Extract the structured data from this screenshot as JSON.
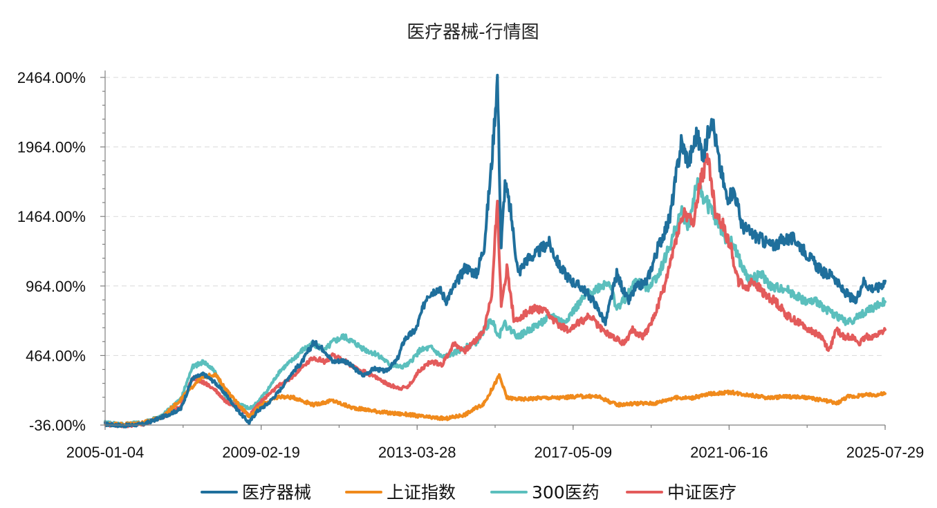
{
  "chart_data": {
    "type": "line",
    "title": "医疗器械-行情图",
    "xlabel": "",
    "ylabel": "",
    "x_tick_labels": [
      "2005-01-04",
      "2009-02-19",
      "2013-03-28",
      "2017-05-09",
      "2021-06-16",
      "2025-07-29"
    ],
    "y_tick_labels": [
      "-36.00%",
      "464.00%",
      "964.00%",
      "1464.00%",
      "1964.00%",
      "2464.00%"
    ],
    "ylim": [
      -36,
      2464
    ],
    "ytick_values": [
      -36,
      464,
      964,
      1464,
      1964,
      2464
    ],
    "x_range": [
      2005.0,
      2025.58
    ],
    "y_unit": "%",
    "grid": "horizontal dashed",
    "legend_position": "bottom",
    "series": [
      {
        "name": "医疗器械",
        "color": "#1f6f9c",
        "x": [
          2005.0,
          2005.5,
          2006.0,
          2006.5,
          2007.0,
          2007.3,
          2007.6,
          2007.9,
          2008.2,
          2008.5,
          2008.8,
          2009.0,
          2009.3,
          2009.6,
          2009.9,
          2010.2,
          2010.5,
          2010.8,
          2011.0,
          2011.3,
          2011.5,
          2011.8,
          2012.1,
          2012.4,
          2012.7,
          2012.9,
          2013.2,
          2013.5,
          2013.8,
          2014.0,
          2014.3,
          2014.5,
          2014.8,
          2015.0,
          2015.2,
          2015.35,
          2015.45,
          2015.55,
          2015.7,
          2015.9,
          2016.1,
          2016.4,
          2016.7,
          2017.0,
          2017.3,
          2017.6,
          2017.9,
          2018.2,
          2018.5,
          2018.8,
          2019.0,
          2019.3,
          2019.6,
          2019.9,
          2020.2,
          2020.4,
          2020.6,
          2020.8,
          2021.0,
          2021.2,
          2021.4,
          2021.6,
          2021.8,
          2022.0,
          2022.3,
          2022.6,
          2022.9,
          2023.2,
          2023.5,
          2023.8,
          2024.0,
          2024.2,
          2024.4,
          2024.6,
          2024.8,
          2025.0,
          2025.2,
          2025.4,
          2025.58
        ],
        "y": [
          -30,
          -40,
          -30,
          20,
          80,
          300,
          330,
          270,
          180,
          70,
          -20,
          60,
          120,
          210,
          330,
          420,
          560,
          500,
          420,
          430,
          390,
          320,
          370,
          350,
          430,
          580,
          650,
          900,
          950,
          860,
          1000,
          1100,
          1050,
          1250,
          1850,
          2464,
          1250,
          1700,
          1500,
          1050,
          1150,
          1200,
          1280,
          1100,
          1000,
          950,
          850,
          700,
          1050,
          850,
          950,
          1000,
          1250,
          1450,
          2000,
          1850,
          2050,
          1900,
          2200,
          1850,
          1600,
          1650,
          1400,
          1350,
          1300,
          1250,
          1300,
          1300,
          1200,
          1100,
          1050,
          1050,
          950,
          900,
          850,
          1000,
          950,
          950,
          1000
        ]
      },
      {
        "name": "上证指数",
        "color": "#f08a1c",
        "x": [
          2005.0,
          2005.5,
          2006.0,
          2006.5,
          2007.0,
          2007.5,
          2007.9,
          2008.3,
          2008.8,
          2009.2,
          2009.6,
          2010.0,
          2010.5,
          2011.0,
          2011.5,
          2012.0,
          2012.5,
          2013.0,
          2013.5,
          2014.0,
          2014.5,
          2015.0,
          2015.4,
          2015.6,
          2016.0,
          2016.5,
          2017.0,
          2017.5,
          2018.0,
          2018.5,
          2019.0,
          2019.5,
          2020.0,
          2020.5,
          2021.0,
          2021.5,
          2022.0,
          2022.5,
          2023.0,
          2023.5,
          2024.0,
          2024.3,
          2024.6,
          2024.8,
          2025.0,
          2025.3,
          2025.58
        ],
        "y": [
          -30,
          -30,
          -20,
          20,
          150,
          300,
          330,
          180,
          30,
          120,
          170,
          160,
          110,
          140,
          90,
          70,
          50,
          40,
          20,
          10,
          40,
          120,
          320,
          160,
          150,
          160,
          160,
          170,
          170,
          110,
          120,
          120,
          160,
          160,
          190,
          200,
          180,
          160,
          170,
          160,
          140,
          120,
          170,
          170,
          180,
          180,
          190
        ]
      },
      {
        "name": "300医药",
        "color": "#5bbfbd",
        "x": [
          2005.0,
          2005.5,
          2006.0,
          2006.5,
          2007.0,
          2007.3,
          2007.6,
          2007.9,
          2008.2,
          2008.5,
          2008.8,
          2009.0,
          2009.3,
          2009.6,
          2009.9,
          2010.2,
          2010.5,
          2010.8,
          2011.0,
          2011.3,
          2011.6,
          2011.9,
          2012.2,
          2012.5,
          2012.8,
          2013.0,
          2013.3,
          2013.6,
          2013.9,
          2014.2,
          2014.5,
          2014.8,
          2015.0,
          2015.2,
          2015.4,
          2015.5,
          2015.7,
          2015.9,
          2016.2,
          2016.5,
          2016.8,
          2017.1,
          2017.4,
          2017.7,
          2018.0,
          2018.3,
          2018.5,
          2018.8,
          2019.0,
          2019.3,
          2019.6,
          2019.9,
          2020.2,
          2020.4,
          2020.6,
          2020.8,
          2021.0,
          2021.2,
          2021.4,
          2021.6,
          2021.8,
          2022.0,
          2022.3,
          2022.6,
          2022.9,
          2023.2,
          2023.5,
          2023.8,
          2024.0,
          2024.3,
          2024.6,
          2024.9,
          2025.2,
          2025.58
        ],
        "y": [
          -20,
          -30,
          -20,
          30,
          150,
          380,
          420,
          350,
          150,
          120,
          80,
          120,
          220,
          350,
          420,
          500,
          550,
          500,
          560,
          600,
          550,
          500,
          470,
          400,
          380,
          400,
          500,
          520,
          450,
          480,
          520,
          560,
          650,
          720,
          600,
          700,
          650,
          600,
          650,
          700,
          750,
          700,
          800,
          900,
          950,
          1000,
          800,
          900,
          1000,
          950,
          1050,
          1250,
          1500,
          1400,
          1700,
          1600,
          1500,
          1400,
          1300,
          1250,
          1100,
          1000,
          1050,
          950,
          950,
          900,
          850,
          850,
          800,
          750,
          700,
          750,
          800,
          850
        ]
      },
      {
        "name": "中证医疗",
        "color": "#e35b5b",
        "x": [
          2005.0,
          2005.5,
          2006.0,
          2006.5,
          2007.0,
          2007.3,
          2007.6,
          2007.9,
          2008.2,
          2008.5,
          2008.8,
          2009.0,
          2009.3,
          2009.6,
          2009.9,
          2010.2,
          2010.5,
          2010.8,
          2011.0,
          2011.3,
          2011.6,
          2011.9,
          2012.2,
          2012.5,
          2012.8,
          2013.0,
          2013.3,
          2013.6,
          2013.9,
          2014.2,
          2014.5,
          2014.8,
          2015.0,
          2015.2,
          2015.35,
          2015.45,
          2015.6,
          2015.8,
          2016.0,
          2016.3,
          2016.6,
          2016.9,
          2017.2,
          2017.5,
          2017.8,
          2018.1,
          2018.4,
          2018.7,
          2018.9,
          2019.2,
          2019.5,
          2019.8,
          2020.1,
          2020.3,
          2020.5,
          2020.7,
          2020.9,
          2021.1,
          2021.3,
          2021.5,
          2021.7,
          2021.9,
          2022.1,
          2022.4,
          2022.7,
          2023.0,
          2023.3,
          2023.6,
          2023.9,
          2024.1,
          2024.3,
          2024.5,
          2024.7,
          2024.9,
          2025.1,
          2025.3,
          2025.58
        ],
        "y": [
          -30,
          -40,
          -30,
          20,
          100,
          300,
          270,
          220,
          130,
          100,
          30,
          100,
          180,
          250,
          300,
          380,
          450,
          420,
          460,
          430,
          370,
          340,
          300,
          250,
          230,
          240,
          360,
          420,
          400,
          550,
          500,
          580,
          650,
          900,
          1600,
          800,
          1100,
          700,
          750,
          800,
          780,
          700,
          650,
          700,
          750,
          650,
          600,
          550,
          650,
          600,
          750,
          1000,
          1350,
          1500,
          1400,
          1700,
          1900,
          1500,
          1400,
          1250,
          1000,
          950,
          1000,
          900,
          850,
          750,
          700,
          650,
          600,
          500,
          650,
          600,
          600,
          550,
          600,
          600,
          650
        ]
      }
    ]
  }
}
